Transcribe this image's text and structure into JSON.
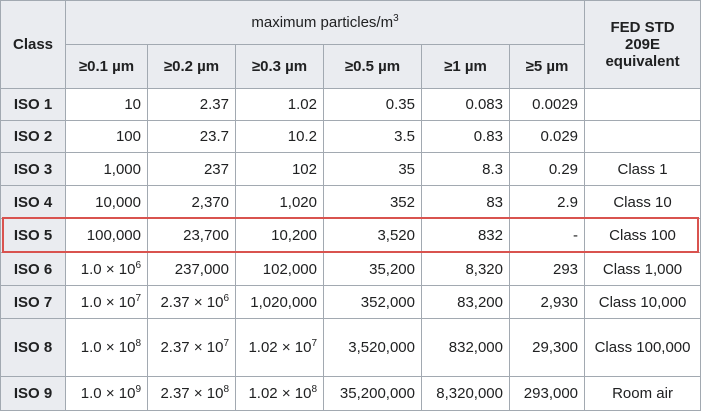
{
  "table": {
    "header": {
      "class": "Class",
      "group": {
        "text": "maximum particles/m",
        "sup": "3"
      },
      "columns": [
        "≥0.1 µm",
        "≥0.2 µm",
        "≥0.3 µm",
        "≥0.5 µm",
        "≥1 µm",
        "≥5 µm"
      ],
      "fed": "FED STD 209E equivalent"
    },
    "rows": [
      {
        "class": "ISO 1",
        "values": [
          "10",
          "2.37",
          "1.02",
          "0.35",
          "0.083",
          "0.0029"
        ],
        "fed": null
      },
      {
        "class": "ISO 2",
        "values": [
          "100",
          "23.7",
          "10.2",
          "3.5",
          "0.83",
          "0.029"
        ],
        "fed": null
      },
      {
        "class": "ISO 3",
        "values": [
          "1,000",
          "237",
          "102",
          "35",
          "8.3",
          "0.29"
        ],
        "fed": "Class 1"
      },
      {
        "class": "ISO 4",
        "values": [
          "10,000",
          "2,370",
          "1,020",
          "352",
          "83",
          "2.9"
        ],
        "fed": "Class 10"
      },
      {
        "class": "ISO 5",
        "values": [
          "100,000",
          "23,700",
          "10,200",
          "3,520",
          "832",
          "-"
        ],
        "fed": "Class 100"
      },
      {
        "class": "ISO 6",
        "values": [
          {
            "base": "1.0 × 10",
            "exp": "6"
          },
          "237,000",
          "102,000",
          "35,200",
          "8,320",
          "293"
        ],
        "fed": "Class 1,000"
      },
      {
        "class": "ISO 7",
        "values": [
          {
            "base": "1.0 × 10",
            "exp": "7"
          },
          {
            "base": "2.37 × 10",
            "exp": "6"
          },
          "1,020,000",
          "352,000",
          "83,200",
          "2,930"
        ],
        "fed": "Class 10,000"
      },
      {
        "class": "ISO 8",
        "values": [
          {
            "base": "1.0 × 10",
            "exp": "8"
          },
          {
            "base": "2.37 × 10",
            "exp": "7"
          },
          {
            "base": "1.02 × 10",
            "exp": "7"
          },
          "3,520,000",
          "832,000",
          "29,300"
        ],
        "fed": "Class 100,000"
      },
      {
        "class": "ISO 9",
        "values": [
          {
            "base": "1.0 × 10",
            "exp": "9"
          },
          {
            "base": "2.37 × 10",
            "exp": "8"
          },
          {
            "base": "1.02 × 10",
            "exp": "8"
          },
          "35,200,000",
          "8,320,000",
          "293,000"
        ],
        "fed": "Room air"
      }
    ],
    "highlight_row": 4
  }
}
